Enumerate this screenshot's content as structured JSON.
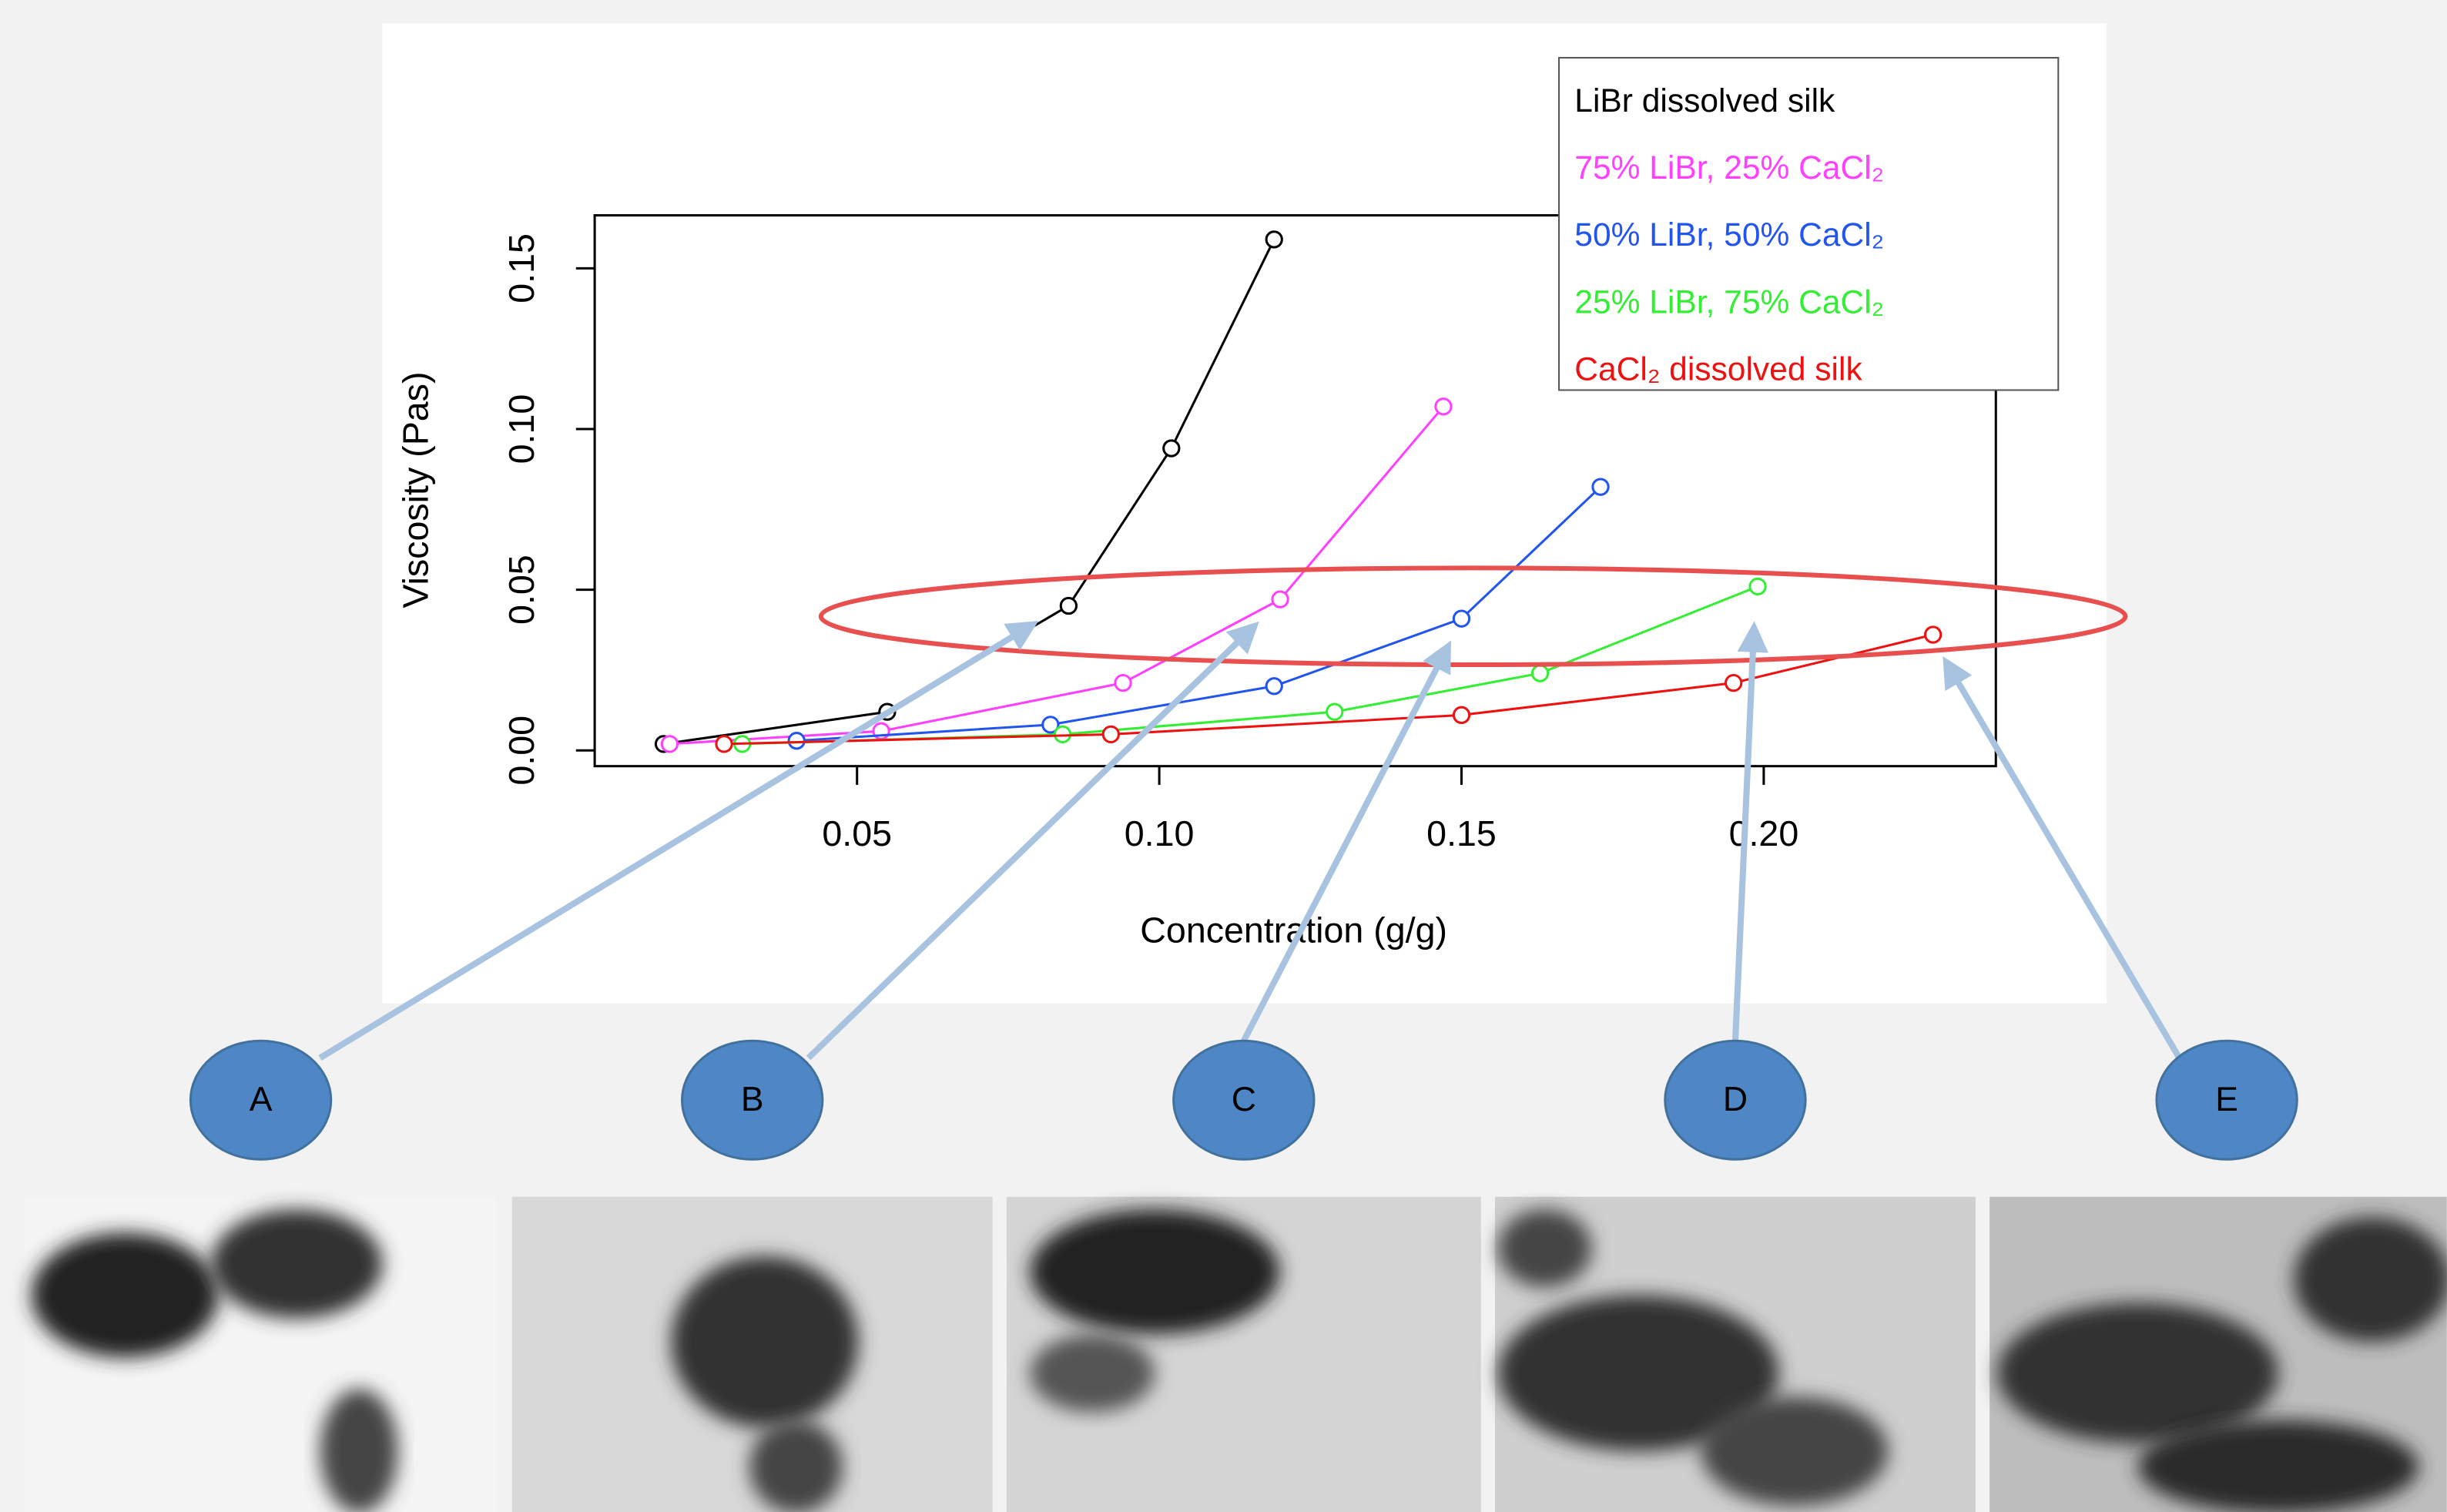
{
  "chart_data": {
    "type": "line",
    "x_label": "Concentration (g/g)",
    "y_label": "Viscosity (Pas)",
    "xlim": [
      0.0066,
      0.2384
    ],
    "ylim": [
      -0.0049,
      0.1665
    ],
    "xticks": [
      0.05,
      {
        "value": 0.1,
        "label": "0.10"
      },
      0.15,
      {
        "value": 0.2,
        "label": "0.20"
      }
    ],
    "yticks": [
      {
        "value": 0,
        "label": "0.00"
      },
      0.05,
      {
        "value": 0.1,
        "label": "0.10"
      },
      0.15
    ],
    "legend": "top-right",
    "series": [
      {
        "name": "LiBr dissolved silk",
        "color": "#000000",
        "x": [
          0.018,
          0.055,
          0.085,
          0.102,
          0.119
        ],
        "values": [
          0.002,
          0.012,
          0.045,
          0.094,
          0.159
        ]
      },
      {
        "name": "75% LiBr, 25% CaCl₂",
        "color": "#ff40ff",
        "x": [
          0.019,
          0.054,
          0.094,
          0.12,
          0.147
        ],
        "values": [
          0.002,
          0.006,
          0.021,
          0.047,
          0.107
        ]
      },
      {
        "name": "50% LiBr, 50% CaCl₂",
        "color": "#2255ee",
        "x": [
          0.04,
          0.082,
          0.119,
          0.15,
          0.173
        ],
        "values": [
          0.003,
          0.008,
          0.02,
          0.041,
          0.082
        ]
      },
      {
        "name": "25% LiBr, 75% CaCl₂",
        "color": "#33ee33",
        "x": [
          0.031,
          0.084,
          0.129,
          0.163,
          0.199
        ],
        "values": [
          0.002,
          0.005,
          0.012,
          0.024,
          0.051
        ]
      },
      {
        "name": "CaCl₂ dissolved silk",
        "color": "#ee1111",
        "x": [
          0.028,
          0.092,
          0.15,
          0.195,
          0.228
        ],
        "values": [
          0.002,
          0.005,
          0.011,
          0.021,
          0.036
        ]
      }
    ],
    "annotations": [
      "A",
      "B",
      "C",
      "D",
      "E"
    ]
  }
}
